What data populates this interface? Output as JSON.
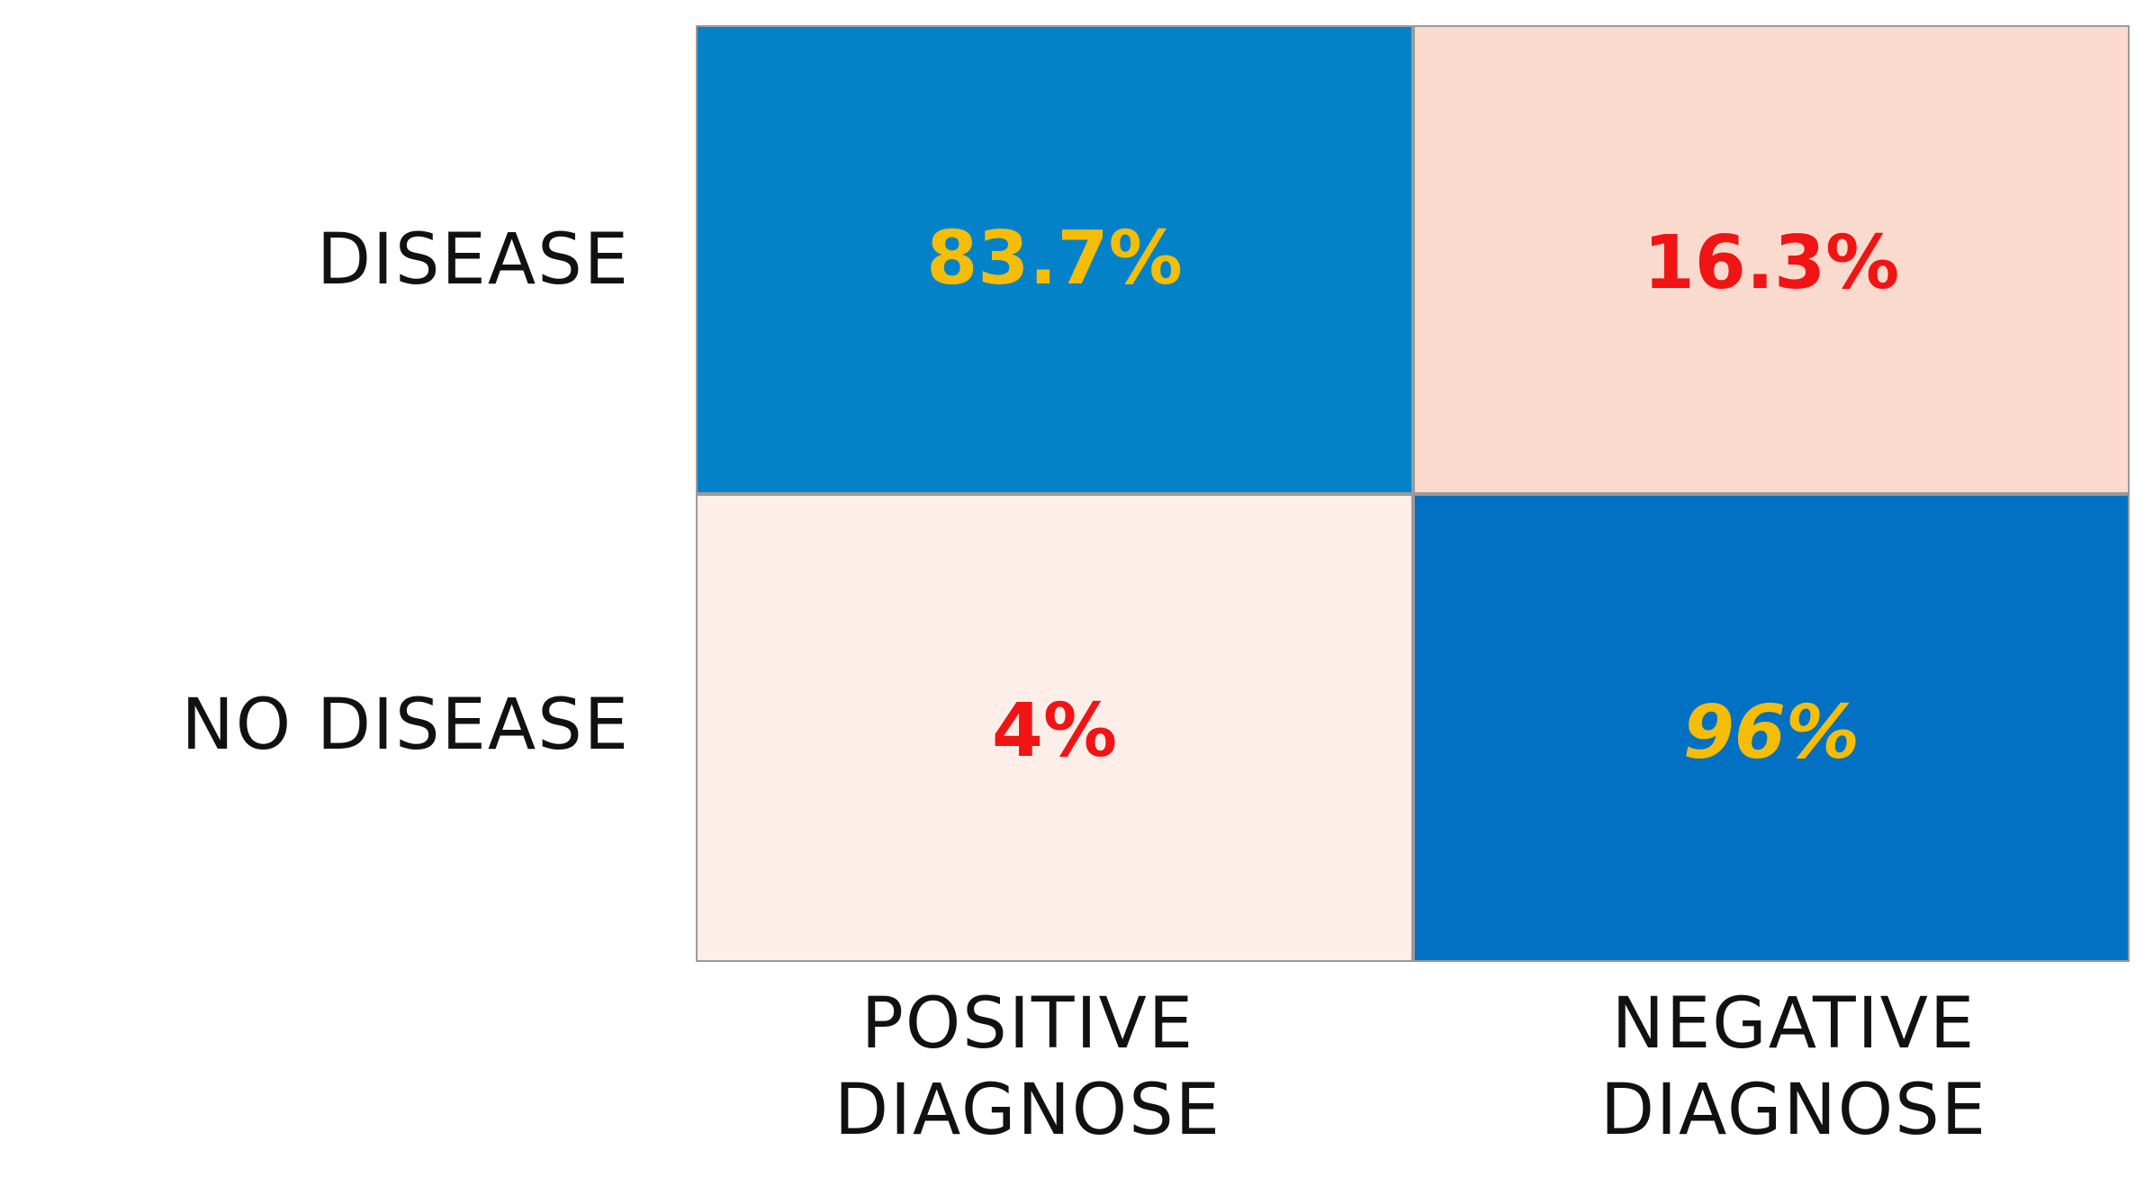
{
  "chart_data": {
    "type": "heatmap",
    "rows": [
      "DISEASE",
      "NO DISEASE"
    ],
    "columns": [
      [
        "POSITIVE",
        "DIAGNOSE"
      ],
      [
        "NEGATIVE",
        "DIAGNOSE"
      ]
    ],
    "cells": [
      [
        {
          "value": 83.7,
          "label": "83.7%",
          "fill": "#0382c9",
          "text_color": "#f5bd08",
          "italic": false
        },
        {
          "value": 16.3,
          "label": "16.3%",
          "fill": "#fbdace",
          "text_color": "#f11414",
          "italic": false
        }
      ],
      [
        {
          "value": 4,
          "label": "4%",
          "fill": "#fdeeea",
          "text_color": "#f11414",
          "italic": false
        },
        {
          "value": 96,
          "label": "96%",
          "fill": "#0270c3",
          "text_color": "#f5bd08",
          "italic": true
        }
      ]
    ]
  }
}
